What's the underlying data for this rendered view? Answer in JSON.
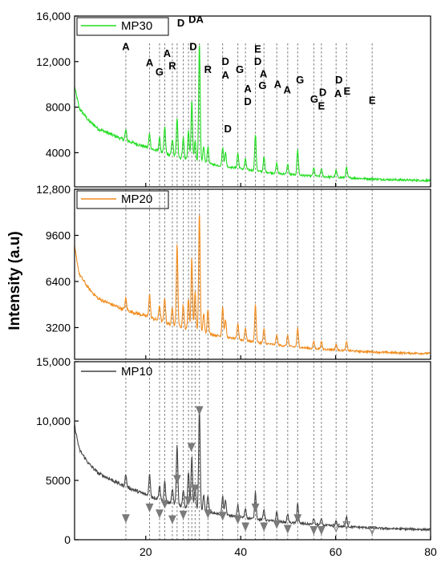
{
  "chart_data": {
    "type": "line",
    "ylabel": "Intensity (a.u)",
    "x_axis": {
      "range": [
        5,
        80
      ],
      "ticks": [
        20,
        40,
        60,
        80
      ],
      "tick_labels": [
        "20",
        "40",
        "60",
        "80"
      ]
    },
    "panels": [
      {
        "legend": "MP30",
        "color": "#22dd22",
        "ylim": [
          1000,
          16000
        ],
        "y_ticks": [
          {
            "value": 4000,
            "label": "4000"
          },
          {
            "value": 8000,
            "label": "8000"
          },
          {
            "value": 12000,
            "label": "12,000"
          },
          {
            "value": 16000,
            "label": "16,000"
          }
        ],
        "baseline": [
          [
            5,
            9800
          ],
          [
            6,
            7900
          ],
          [
            8,
            6800
          ],
          [
            10,
            6100
          ],
          [
            15,
            5200
          ],
          [
            20,
            4500
          ],
          [
            25,
            3800
          ],
          [
            30,
            3300
          ],
          [
            35,
            2900
          ],
          [
            40,
            2600
          ],
          [
            45,
            2300
          ],
          [
            50,
            2100
          ],
          [
            55,
            1950
          ],
          [
            60,
            1850
          ],
          [
            65,
            1750
          ],
          [
            70,
            1650
          ],
          [
            75,
            1600
          ],
          [
            80,
            1550
          ]
        ],
        "peaks": [
          [
            15.8,
            900
          ],
          [
            20.8,
            1300
          ],
          [
            22.9,
            1200
          ],
          [
            24.0,
            2300
          ],
          [
            25.6,
            1500
          ],
          [
            26.6,
            3300
          ],
          [
            27.9,
            1800
          ],
          [
            29.0,
            2500
          ],
          [
            29.7,
            5200
          ],
          [
            30.4,
            1800
          ],
          [
            31.3,
            10500
          ],
          [
            32.2,
            1400
          ],
          [
            33.1,
            1500
          ],
          [
            36.2,
            1600
          ],
          [
            36.8,
            1200
          ],
          [
            39.4,
            1300
          ],
          [
            41.0,
            900
          ],
          [
            43.1,
            3200
          ],
          [
            44.9,
            1300
          ],
          [
            47.6,
            900
          ],
          [
            49.9,
            900
          ],
          [
            52.0,
            2200
          ],
          [
            55.4,
            700
          ],
          [
            57.0,
            700
          ],
          [
            60.1,
            600
          ],
          [
            62.3,
            900
          ]
        ]
      },
      {
        "legend": "MP20",
        "color": "#f08c1e",
        "ylim": [
          1000,
          12800
        ],
        "y_ticks": [
          {
            "value": 3200,
            "label": "3200"
          },
          {
            "value": 6400,
            "label": "6400"
          },
          {
            "value": 9600,
            "label": "9600"
          },
          {
            "value": 12800,
            "label": "12,800"
          }
        ],
        "baseline": [
          [
            5,
            8800
          ],
          [
            6,
            6900
          ],
          [
            8,
            5900
          ],
          [
            10,
            5200
          ],
          [
            15,
            4500
          ],
          [
            20,
            4000
          ],
          [
            25,
            3450
          ],
          [
            30,
            3000
          ],
          [
            35,
            2650
          ],
          [
            40,
            2350
          ],
          [
            45,
            2100
          ],
          [
            50,
            1900
          ],
          [
            55,
            1750
          ],
          [
            60,
            1650
          ],
          [
            65,
            1550
          ],
          [
            70,
            1480
          ],
          [
            75,
            1430
          ],
          [
            80,
            1400
          ]
        ],
        "peaks": [
          [
            15.8,
            800
          ],
          [
            20.8,
            1600
          ],
          [
            22.9,
            1100
          ],
          [
            24.0,
            1700
          ],
          [
            25.6,
            1200
          ],
          [
            26.6,
            5600
          ],
          [
            27.9,
            1600
          ],
          [
            29.0,
            2100
          ],
          [
            29.7,
            5000
          ],
          [
            30.4,
            2700
          ],
          [
            31.3,
            8300
          ],
          [
            32.2,
            1300
          ],
          [
            33.1,
            1700
          ],
          [
            36.2,
            2100
          ],
          [
            36.8,
            1200
          ],
          [
            39.4,
            1100
          ],
          [
            41.0,
            900
          ],
          [
            43.1,
            2600
          ],
          [
            44.9,
            1000
          ],
          [
            47.6,
            700
          ],
          [
            49.9,
            800
          ],
          [
            52.0,
            1300
          ],
          [
            55.4,
            500
          ],
          [
            57.0,
            500
          ],
          [
            60.1,
            400
          ],
          [
            62.3,
            600
          ]
        ]
      },
      {
        "legend": "MP10",
        "color": "#444444",
        "ylim": [
          0,
          15000
        ],
        "y_ticks": [
          {
            "value": 0,
            "label": "0"
          },
          {
            "value": 5000,
            "label": "5000"
          },
          {
            "value": 10000,
            "label": "10,000"
          },
          {
            "value": 15000,
            "label": "15,000"
          }
        ],
        "baseline": [
          [
            5,
            9600
          ],
          [
            6,
            7600
          ],
          [
            8,
            6400
          ],
          [
            10,
            5600
          ],
          [
            15,
            4600
          ],
          [
            20,
            3800
          ],
          [
            25,
            3100
          ],
          [
            30,
            2600
          ],
          [
            35,
            2200
          ],
          [
            40,
            1900
          ],
          [
            45,
            1650
          ],
          [
            50,
            1450
          ],
          [
            55,
            1300
          ],
          [
            60,
            1150
          ],
          [
            65,
            1050
          ],
          [
            70,
            950
          ],
          [
            75,
            900
          ],
          [
            80,
            850
          ]
        ],
        "peaks": [
          [
            15.8,
            1000
          ],
          [
            20.8,
            1800
          ],
          [
            22.9,
            1200
          ],
          [
            24.0,
            1600
          ],
          [
            25.6,
            1200
          ],
          [
            26.6,
            5000
          ],
          [
            27.9,
            1400
          ],
          [
            29.0,
            3100
          ],
          [
            29.7,
            4500
          ],
          [
            30.4,
            2000
          ],
          [
            31.3,
            8600
          ],
          [
            32.2,
            1300
          ],
          [
            33.1,
            1400
          ],
          [
            36.2,
            1500
          ],
          [
            36.8,
            1200
          ],
          [
            39.4,
            1000
          ],
          [
            41.0,
            800
          ],
          [
            43.1,
            2300
          ],
          [
            44.9,
            900
          ],
          [
            47.6,
            800
          ],
          [
            49.9,
            700
          ],
          [
            52.0,
            1700
          ],
          [
            55.4,
            500
          ],
          [
            57.0,
            500
          ],
          [
            60.1,
            400
          ],
          [
            62.3,
            900
          ]
        ]
      }
    ],
    "drop_lines": [
      15.8,
      20.8,
      22.9,
      24.0,
      25.6,
      26.6,
      27.9,
      29.0,
      29.7,
      30.4,
      31.3,
      33.1,
      36.2,
      39.4,
      41.0,
      43.1,
      44.9,
      47.6,
      49.9,
      52.0,
      55.4,
      57.0,
      60.1,
      62.3,
      67.7
    ],
    "phase_labels": [
      {
        "text": "A",
        "x": 15.8,
        "y": 13000
      },
      {
        "text": "A",
        "x": 20.8,
        "y": 11600
      },
      {
        "text": "G",
        "x": 22.9,
        "y": 10800
      },
      {
        "text": "A",
        "x": 24.5,
        "y": 12400
      },
      {
        "text": "R",
        "x": 25.6,
        "y": 11300
      },
      {
        "text": "D",
        "x": 27.4,
        "y": 15100
      },
      {
        "text": "DA",
        "x": 30.6,
        "y": 15400
      },
      {
        "text": "D",
        "x": 30.0,
        "y": 13000
      },
      {
        "text": "R",
        "x": 33.1,
        "y": 11000
      },
      {
        "text": "D",
        "x": 36.8,
        "y": 11700
      },
      {
        "text": "A",
        "x": 36.8,
        "y": 10500
      },
      {
        "text": "D",
        "x": 37.3,
        "y": 5800
      },
      {
        "text": "G",
        "x": 39.8,
        "y": 11000
      },
      {
        "text": "E",
        "x": 43.6,
        "y": 12800
      },
      {
        "text": "D",
        "x": 43.6,
        "y": 11700
      },
      {
        "text": "A",
        "x": 44.8,
        "y": 10600
      },
      {
        "text": "G",
        "x": 44.6,
        "y": 9600
      },
      {
        "text": "A",
        "x": 41.5,
        "y": 9300
      },
      {
        "text": "D",
        "x": 41.5,
        "y": 8200
      },
      {
        "text": "A",
        "x": 47.8,
        "y": 9700
      },
      {
        "text": "A",
        "x": 49.8,
        "y": 9200
      },
      {
        "text": "G",
        "x": 52.5,
        "y": 10100
      },
      {
        "text": "G",
        "x": 55.5,
        "y": 8400
      },
      {
        "text": "D",
        "x": 57.3,
        "y": 9000
      },
      {
        "text": "E",
        "x": 57.0,
        "y": 7800
      },
      {
        "text": "D",
        "x": 60.7,
        "y": 10100
      },
      {
        "text": "A",
        "x": 60.5,
        "y": 8900
      },
      {
        "text": "E",
        "x": 62.4,
        "y": 9100
      },
      {
        "text": "E",
        "x": 67.7,
        "y": 8300
      }
    ],
    "arrows_mp10": [
      {
        "x": 15.8,
        "y": 1500,
        "filled": true
      },
      {
        "x": 20.8,
        "y": 2400,
        "filled": true
      },
      {
        "x": 22.9,
        "y": 1900,
        "filled": true
      },
      {
        "x": 24.0,
        "y": 2700,
        "filled": true
      },
      {
        "x": 25.6,
        "y": 1400,
        "filled": true
      },
      {
        "x": 26.6,
        "y": 4800,
        "filled": true
      },
      {
        "x": 27.9,
        "y": 1800,
        "filled": true
      },
      {
        "x": 29.0,
        "y": 3000,
        "filled": true
      },
      {
        "x": 29.6,
        "y": 7500,
        "filled": true
      },
      {
        "x": 30.4,
        "y": 4000,
        "filled": true
      },
      {
        "x": 31.3,
        "y": 10600,
        "filled": true
      },
      {
        "x": 33.1,
        "y": 1900,
        "filled": true
      },
      {
        "x": 36.2,
        "y": 1700,
        "filled": true
      },
      {
        "x": 39.4,
        "y": 1400,
        "filled": true
      },
      {
        "x": 41.0,
        "y": 800,
        "filled": true
      },
      {
        "x": 43.1,
        "y": 2400,
        "filled": true
      },
      {
        "x": 44.9,
        "y": 800,
        "filled": true
      },
      {
        "x": 47.6,
        "y": 1000,
        "filled": true
      },
      {
        "x": 49.9,
        "y": 600,
        "filled": true
      },
      {
        "x": 52.0,
        "y": 1500,
        "filled": true
      },
      {
        "x": 55.4,
        "y": 500,
        "filled": true
      },
      {
        "x": 57.0,
        "y": 500,
        "filled": true
      },
      {
        "x": 60.1,
        "y": 700,
        "filled": false
      },
      {
        "x": 62.3,
        "y": 900,
        "filled": false
      },
      {
        "x": 67.7,
        "y": 500,
        "filled": false
      }
    ]
  }
}
